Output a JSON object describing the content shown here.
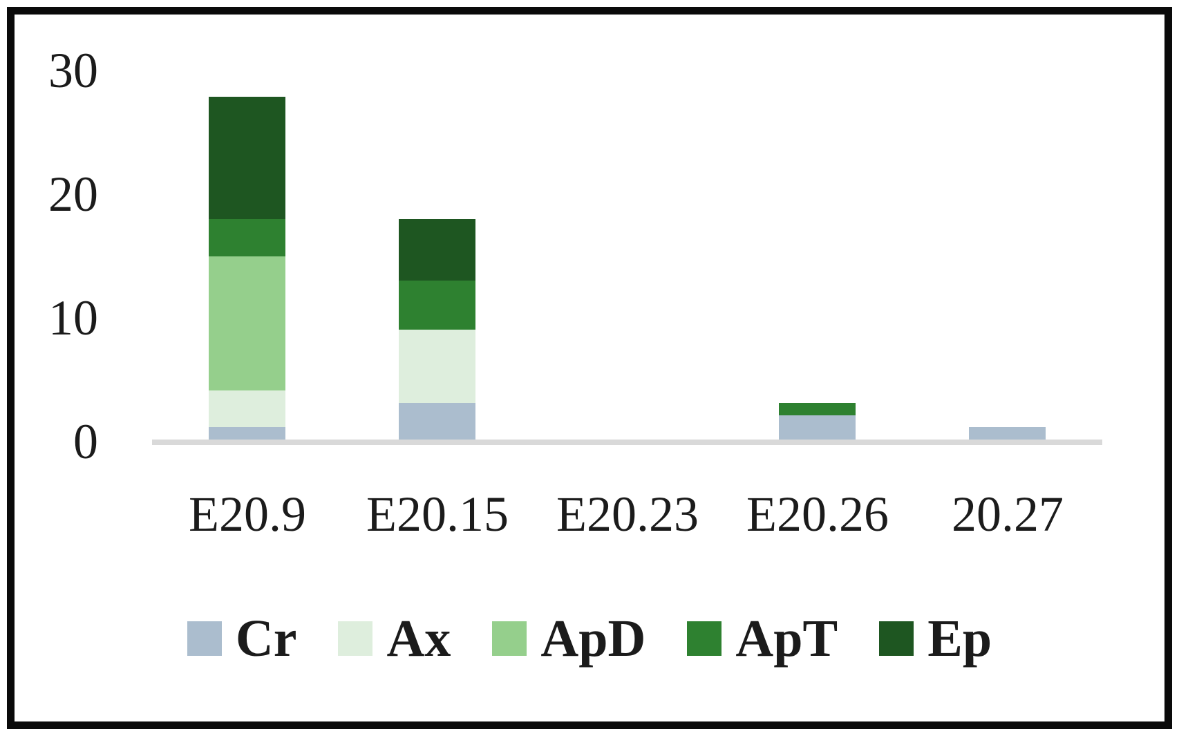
{
  "figure": {
    "background": "#ffffff",
    "border_color": "#0a0a0a",
    "text_color": "#1b1b1b"
  },
  "chart_data": {
    "type": "bar",
    "stacked": true,
    "title": "",
    "xlabel": "",
    "ylabel": "",
    "categories": [
      "E20.9",
      "E20.15",
      "E20.23",
      "E20.26",
      "20.27"
    ],
    "series": [
      {
        "name": "Cr",
        "color": "#abbdce",
        "values": [
          1,
          3,
          0,
          2,
          1
        ]
      },
      {
        "name": "Ax",
        "color": "#deeedd",
        "values": [
          3,
          6,
          0,
          0,
          0
        ]
      },
      {
        "name": "ApD",
        "color": "#95cf8c",
        "values": [
          11,
          0,
          0,
          0,
          0
        ]
      },
      {
        "name": "ApT",
        "color": "#2e8130",
        "values": [
          3,
          4,
          0,
          1,
          0
        ]
      },
      {
        "name": "Ep",
        "color": "#1e5621",
        "values": [
          10,
          5,
          0,
          0,
          0
        ]
      }
    ],
    "totals": [
      28,
      18,
      0,
      3,
      1
    ],
    "ylim": [
      0,
      30
    ],
    "yticks": [
      0,
      10,
      20,
      30
    ],
    "ytick_labels_top_down": [
      "30",
      "20",
      "10",
      "0"
    ],
    "grid": false,
    "axis_line_color": "#d9d9d9",
    "legend_position": "bottom-center",
    "legend_entries": [
      "Cr",
      "Ax",
      "ApD",
      "ApT",
      "Ep"
    ]
  }
}
